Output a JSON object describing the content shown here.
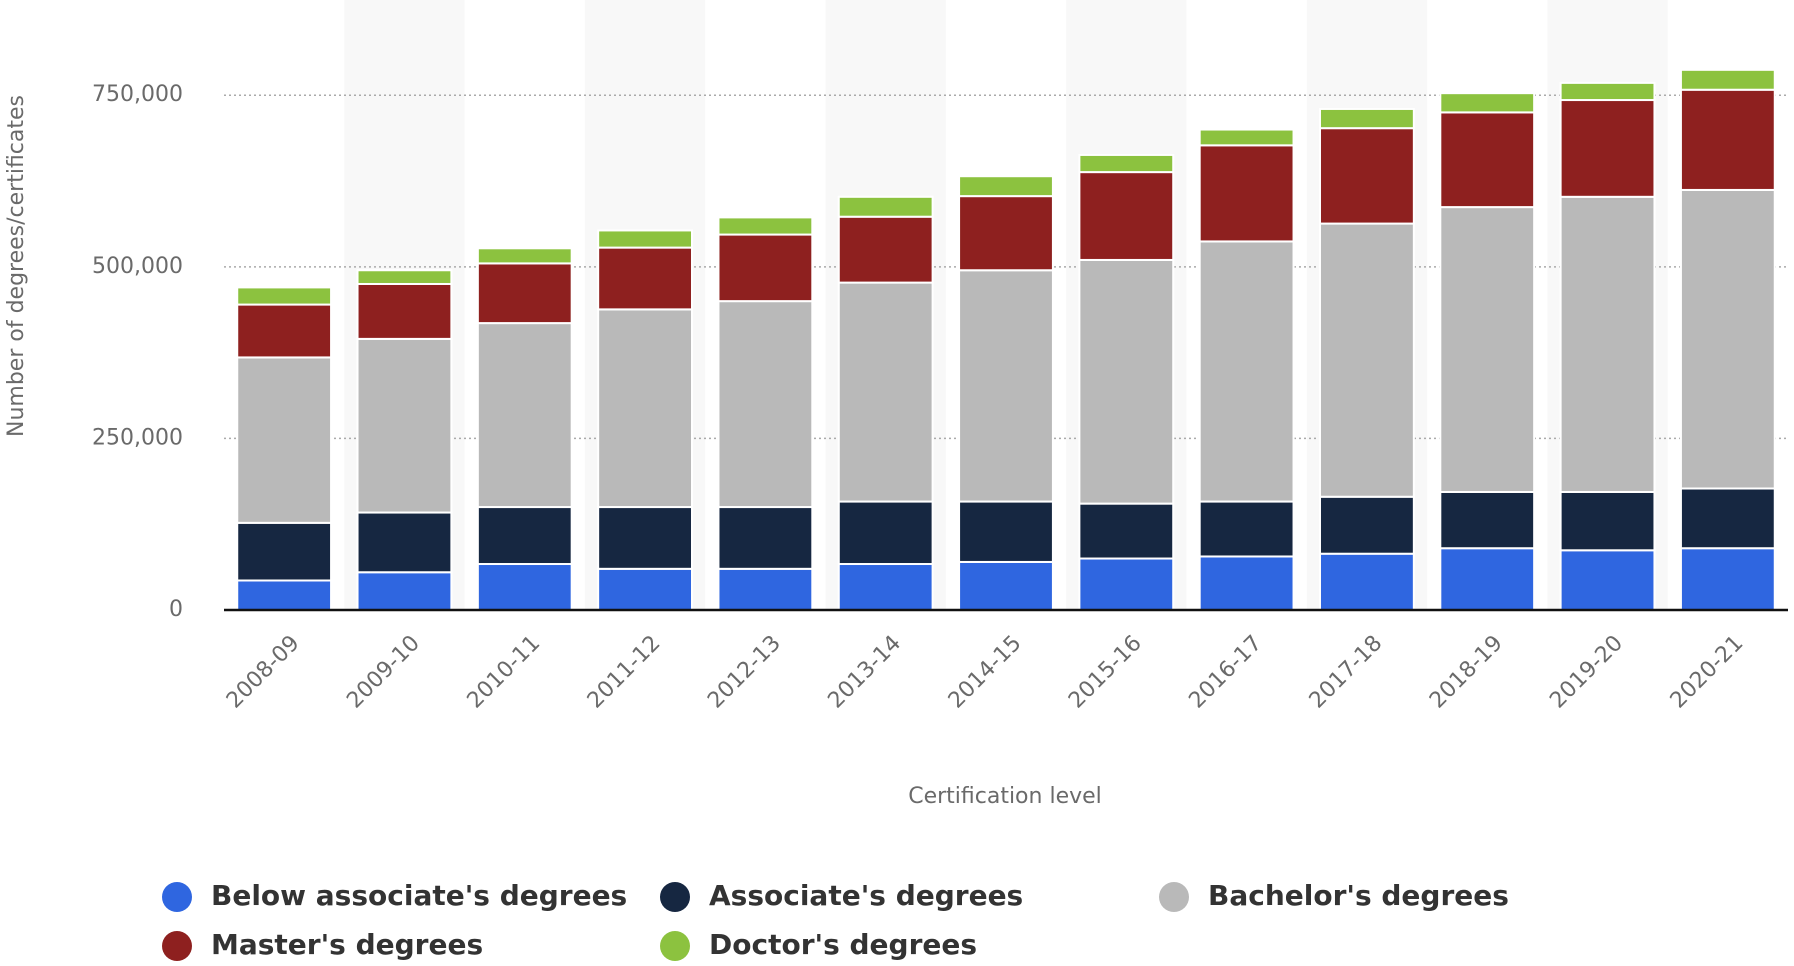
{
  "chart_data": {
    "type": "stacked_bar",
    "y_label": "Number of degrees/certificates",
    "x_label": "Certification level",
    "categories": [
      "2008-09",
      "2009-10",
      "2010-11",
      "2011-12",
      "2012-13",
      "2013-14",
      "2014-15",
      "2015-16",
      "2016-17",
      "2017-18",
      "2018-19",
      "2019-20",
      "2020-21"
    ],
    "series": [
      {
        "name": "Below associate's degrees",
        "color": "#2f66e0",
        "values": [
          43000,
          55000,
          67000,
          60000,
          60000,
          67000,
          70000,
          75000,
          78000,
          82000,
          90000,
          87000,
          90000
        ]
      },
      {
        "name": "Associate's degrees",
        "color": "#162741",
        "values": [
          84000,
          87000,
          83000,
          90000,
          90000,
          91000,
          88000,
          80000,
          80000,
          83000,
          82000,
          85000,
          87000
        ]
      },
      {
        "name": "Bachelor's degrees",
        "color": "#b9b9b9",
        "values": [
          241000,
          253000,
          268000,
          288000,
          300000,
          319000,
          337000,
          355000,
          379000,
          398000,
          415000,
          430000,
          435000
        ]
      },
      {
        "name": "Master's degrees",
        "color": "#8e201f",
        "values": [
          77000,
          80000,
          87000,
          90000,
          97000,
          96000,
          108000,
          128000,
          140000,
          139000,
          138000,
          141000,
          146000
        ]
      },
      {
        "name": "Doctor's degrees",
        "color": "#8cc23f",
        "values": [
          25000,
          20000,
          22000,
          25000,
          25000,
          29000,
          29000,
          25000,
          23000,
          28000,
          28000,
          25000,
          29000
        ]
      }
    ],
    "ylim": [
      0,
      880000
    ],
    "yticks": [
      0,
      {
        "value": 250000,
        "label": "250,000"
      },
      {
        "value": 500000,
        "label": "500,000"
      },
      {
        "value": 750000,
        "label": "750,000"
      }
    ],
    "grid": true,
    "legend": "bottom"
  }
}
